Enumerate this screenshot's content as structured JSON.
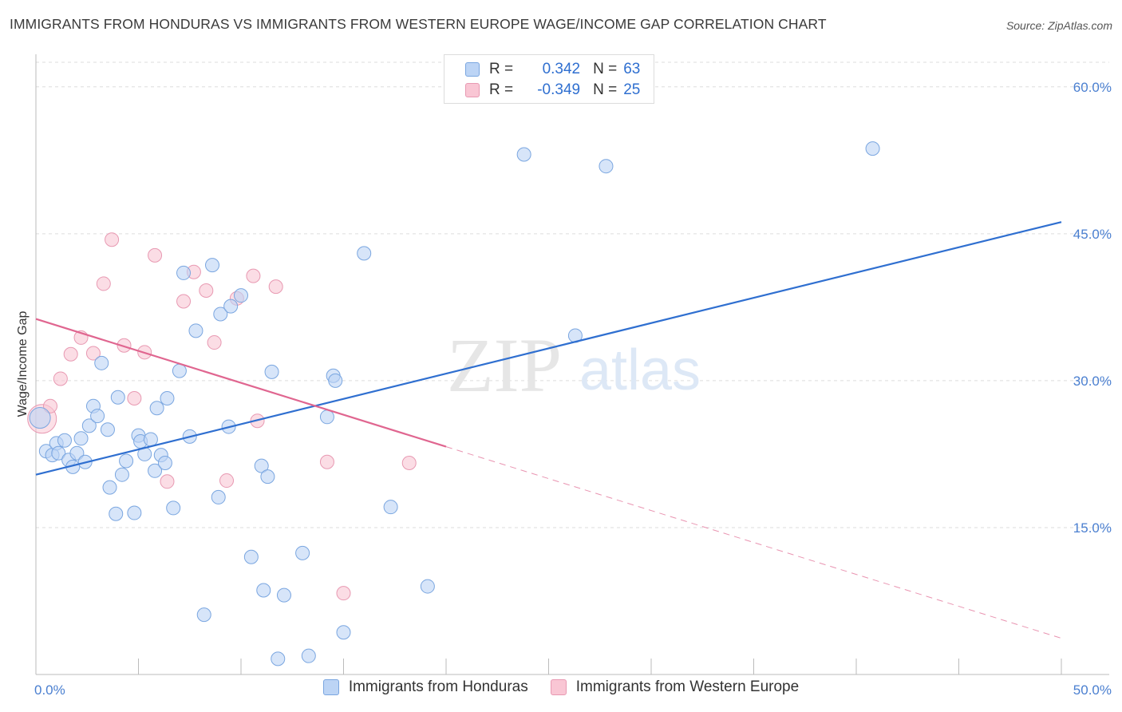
{
  "header": {
    "title": "IMMIGRANTS FROM HONDURAS VS IMMIGRANTS FROM WESTERN EUROPE WAGE/INCOME GAP CORRELATION CHART",
    "source": "Source: ZipAtlas.com"
  },
  "watermark": {
    "part1": "ZIP",
    "part2": "atlas"
  },
  "legend_top": {
    "rows": [
      {
        "r_label": "R =",
        "r_value": "0.342",
        "n_label": "N =",
        "n_value": "63"
      },
      {
        "r_label": "R =",
        "r_value": "-0.349",
        "n_label": "N =",
        "n_value": "25"
      }
    ]
  },
  "legend_bottom": {
    "items": [
      {
        "label": "Immigrants from Honduras"
      },
      {
        "label": "Immigrants from Western Europe"
      }
    ]
  },
  "colors": {
    "series_a_fill": "#bcd4f5",
    "series_a_stroke": "#7aa6e0",
    "series_a_line": "#2f6fd0",
    "series_b_fill": "#f9c6d4",
    "series_b_stroke": "#e899b2",
    "series_b_line": "#e06690",
    "grid": "#dddddd",
    "tick_label": "#4a7fd0"
  },
  "chart_data": {
    "type": "scatter",
    "title": "IMMIGRANTS FROM HONDURAS VS IMMIGRANTS FROM WESTERN EUROPE WAGE/INCOME GAP CORRELATION CHART",
    "xlabel": "",
    "ylabel": "Wage/Income Gap",
    "xlim": [
      0,
      50
    ],
    "ylim": [
      0,
      63
    ],
    "y_ticks": [
      {
        "value": 15,
        "label": "15.0%"
      },
      {
        "value": 30,
        "label": "30.0%"
      },
      {
        "value": 45,
        "label": "45.0%"
      },
      {
        "value": 60,
        "label": "60.0%"
      }
    ],
    "x_ticks_labeled": [
      {
        "value": 0,
        "label": "0.0%"
      },
      {
        "value": 50,
        "label": "50.0%"
      }
    ],
    "x_minor_ticks": [
      5,
      10,
      15,
      20,
      25,
      30,
      35,
      40,
      45
    ],
    "grid": true,
    "series": [
      {
        "name": "Immigrants from Honduras",
        "r": 0.342,
        "n": 63,
        "trend": {
          "x0": 0,
          "y0": 20.4,
          "x1": 50,
          "y1": 46.2,
          "dashed_from": null
        },
        "points": [
          {
            "x": 0.2,
            "y": 26.2,
            "big": true
          },
          {
            "x": 0.5,
            "y": 22.8
          },
          {
            "x": 0.8,
            "y": 22.4
          },
          {
            "x": 1.0,
            "y": 23.6
          },
          {
            "x": 1.1,
            "y": 22.6
          },
          {
            "x": 1.4,
            "y": 23.9
          },
          {
            "x": 1.6,
            "y": 21.9
          },
          {
            "x": 1.8,
            "y": 21.2
          },
          {
            "x": 2.0,
            "y": 22.6
          },
          {
            "x": 2.2,
            "y": 24.1
          },
          {
            "x": 2.4,
            "y": 21.7
          },
          {
            "x": 2.6,
            "y": 25.4
          },
          {
            "x": 2.8,
            "y": 27.4
          },
          {
            "x": 3.0,
            "y": 26.4
          },
          {
            "x": 3.2,
            "y": 31.8
          },
          {
            "x": 3.5,
            "y": 25.0
          },
          {
            "x": 3.6,
            "y": 19.1
          },
          {
            "x": 3.9,
            "y": 16.4
          },
          {
            "x": 4.0,
            "y": 28.3
          },
          {
            "x": 4.2,
            "y": 20.4
          },
          {
            "x": 4.4,
            "y": 21.8
          },
          {
            "x": 4.8,
            "y": 16.5
          },
          {
            "x": 5.0,
            "y": 24.4
          },
          {
            "x": 5.1,
            "y": 23.8
          },
          {
            "x": 5.3,
            "y": 22.5
          },
          {
            "x": 5.6,
            "y": 24.0
          },
          {
            "x": 5.8,
            "y": 20.8
          },
          {
            "x": 5.9,
            "y": 27.2
          },
          {
            "x": 6.1,
            "y": 22.4
          },
          {
            "x": 6.3,
            "y": 21.6
          },
          {
            "x": 6.4,
            "y": 28.2
          },
          {
            "x": 6.7,
            "y": 17.0
          },
          {
            "x": 7.0,
            "y": 31.0
          },
          {
            "x": 7.2,
            "y": 41.0
          },
          {
            "x": 7.5,
            "y": 24.3
          },
          {
            "x": 7.8,
            "y": 35.1
          },
          {
            "x": 8.2,
            "y": 6.1
          },
          {
            "x": 8.6,
            "y": 41.8
          },
          {
            "x": 8.9,
            "y": 18.1
          },
          {
            "x": 9.0,
            "y": 36.8
          },
          {
            "x": 9.4,
            "y": 25.3
          },
          {
            "x": 9.5,
            "y": 37.6
          },
          {
            "x": 10.0,
            "y": 38.7
          },
          {
            "x": 10.5,
            "y": 12.0
          },
          {
            "x": 11.0,
            "y": 21.3
          },
          {
            "x": 11.1,
            "y": 8.6
          },
          {
            "x": 11.3,
            "y": 20.2
          },
          {
            "x": 11.5,
            "y": 30.9
          },
          {
            "x": 11.8,
            "y": 1.6
          },
          {
            "x": 12.1,
            "y": 8.1
          },
          {
            "x": 13.0,
            "y": 12.4
          },
          {
            "x": 13.3,
            "y": 1.9
          },
          {
            "x": 14.2,
            "y": 26.3
          },
          {
            "x": 14.5,
            "y": 30.5
          },
          {
            "x": 14.6,
            "y": 30.0
          },
          {
            "x": 15.0,
            "y": 4.3
          },
          {
            "x": 16.0,
            "y": 43.0
          },
          {
            "x": 17.3,
            "y": 17.1
          },
          {
            "x": 19.1,
            "y": 9.0
          },
          {
            "x": 23.8,
            "y": 53.1
          },
          {
            "x": 26.3,
            "y": 34.6
          },
          {
            "x": 27.8,
            "y": 51.9
          },
          {
            "x": 40.8,
            "y": 53.7
          }
        ]
      },
      {
        "name": "Immigrants from Western Europe",
        "r": -0.349,
        "n": 25,
        "trend": {
          "x0": 0,
          "y0": 36.3,
          "x1": 50,
          "y1": 3.7,
          "dashed_from": 20
        },
        "points": [
          {
            "x": 0.3,
            "y": 26.1,
            "big": true
          },
          {
            "x": 0.7,
            "y": 27.4
          },
          {
            "x": 1.2,
            "y": 30.2
          },
          {
            "x": 1.7,
            "y": 32.7
          },
          {
            "x": 2.2,
            "y": 34.4
          },
          {
            "x": 2.8,
            "y": 32.8
          },
          {
            "x": 3.3,
            "y": 39.9
          },
          {
            "x": 3.7,
            "y": 44.4
          },
          {
            "x": 4.3,
            "y": 33.6
          },
          {
            "x": 4.8,
            "y": 28.2
          },
          {
            "x": 5.3,
            "y": 32.9
          },
          {
            "x": 5.8,
            "y": 42.8
          },
          {
            "x": 6.4,
            "y": 19.7
          },
          {
            "x": 7.2,
            "y": 38.1
          },
          {
            "x": 7.7,
            "y": 41.1
          },
          {
            "x": 8.3,
            "y": 39.2
          },
          {
            "x": 8.7,
            "y": 33.9
          },
          {
            "x": 9.3,
            "y": 19.8
          },
          {
            "x": 9.8,
            "y": 38.4
          },
          {
            "x": 10.6,
            "y": 40.7
          },
          {
            "x": 10.8,
            "y": 25.9
          },
          {
            "x": 11.7,
            "y": 39.6
          },
          {
            "x": 14.2,
            "y": 21.7
          },
          {
            "x": 15.0,
            "y": 8.3
          },
          {
            "x": 18.2,
            "y": 21.6
          }
        ]
      }
    ]
  }
}
